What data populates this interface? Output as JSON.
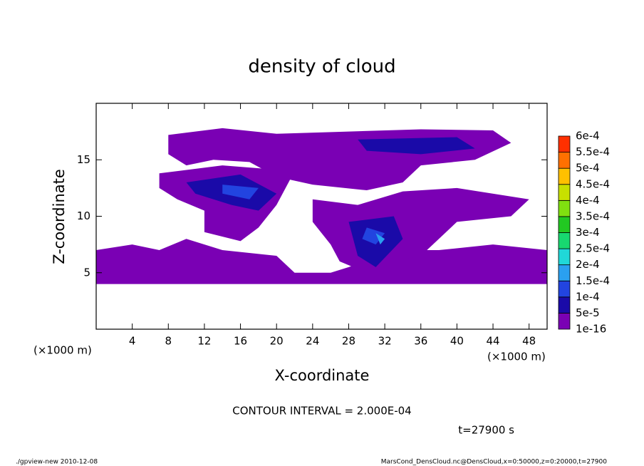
{
  "chart_data": {
    "type": "contour",
    "title": "density of cloud",
    "x_label": "X-coordinate",
    "y_label": "Z-coordinate",
    "x_unit": "(×1000 m)",
    "y_unit": "(×1000 m)",
    "contour_interval": "CONTOUR INTERVAL = 2.000E-04",
    "time": "t=27900 s",
    "footer_left": "./gpview-new   2010-12-08",
    "footer_right": "MarsCond_DensCloud.nc@DensCloud,x=0:50000,z=0:20000,t=27900",
    "xlim": [
      0,
      50
    ],
    "ylim": [
      0,
      20
    ],
    "xticks": [
      4,
      8,
      12,
      16,
      20,
      24,
      28,
      32,
      36,
      40,
      44,
      48
    ],
    "yticks": [
      5,
      10,
      15
    ],
    "colorbar": {
      "levels": [
        {
          "value": 1e-16,
          "label": "1e-16"
        },
        {
          "value": 5e-05,
          "label": "5e-5"
        },
        {
          "value": 0.0001,
          "label": "1e-4"
        },
        {
          "value": 0.00015,
          "label": "1.5e-4"
        },
        {
          "value": 0.0002,
          "label": "2e-4"
        },
        {
          "value": 0.00025,
          "label": "2.5e-4"
        },
        {
          "value": 0.0003,
          "label": "3e-4"
        },
        {
          "value": 0.00035,
          "label": "3.5e-4"
        },
        {
          "value": 0.0004,
          "label": "4e-4"
        },
        {
          "value": 0.00045,
          "label": "4.5e-4"
        },
        {
          "value": 0.0005,
          "label": "5e-4"
        },
        {
          "value": 0.00055,
          "label": "5.5e-4"
        },
        {
          "value": 0.0006,
          "label": "6e-4"
        }
      ],
      "colors": [
        "#7a00b4",
        "#1a0aa8",
        "#2244e0",
        "#2aa0f0",
        "#20d8d8",
        "#18d870",
        "#22c822",
        "#80e010",
        "#c8e000",
        "#ffc000",
        "#ff7000",
        "#ff3000",
        "#ff7f7f"
      ]
    },
    "regions": [
      {
        "min": 1e-16,
        "x": [
          0,
          50,
          50,
          44,
          38,
          33,
          28,
          26,
          22,
          20,
          14,
          10,
          7,
          4,
          0
        ],
        "z": [
          4,
          4,
          7,
          7.5,
          7,
          7,
          5.5,
          5,
          5,
          6.5,
          7,
          8,
          7,
          7.5,
          7
        ]
      },
      {
        "min": 1e-16,
        "x": [
          8,
          14,
          20,
          28,
          36,
          44,
          46,
          42,
          36,
          34,
          30,
          24,
          20,
          17,
          13,
          10,
          8
        ],
        "z": [
          17.2,
          17.8,
          17.3,
          17.5,
          17.7,
          17.6,
          16.5,
          15,
          14.5,
          13,
          12.3,
          12.8,
          13.5,
          14.8,
          15,
          14.5,
          15.5
        ]
      },
      {
        "min": 1e-16,
        "x": [
          7,
          14,
          22,
          20,
          18,
          16,
          12,
          12,
          9,
          7
        ],
        "z": [
          13.8,
          14.5,
          14,
          11,
          9,
          7.8,
          8.6,
          10.5,
          11.5,
          12.5
        ]
      },
      {
        "min": 1e-16,
        "x": [
          24,
          29,
          34,
          40,
          48,
          46,
          40,
          38,
          36,
          33,
          30,
          27,
          26,
          24
        ],
        "z": [
          11.5,
          11,
          12.2,
          12.5,
          11.5,
          10,
          9.5,
          8,
          6.5,
          6,
          5,
          6,
          7.5,
          9.5
        ]
      },
      {
        "min": 5e-05,
        "x": [
          10,
          16,
          20,
          18,
          15,
          11
        ],
        "z": [
          13,
          13.7,
          12,
          10.5,
          11,
          12
        ]
      },
      {
        "min": 5e-05,
        "x": [
          28,
          33,
          34,
          31,
          29
        ],
        "z": [
          9.5,
          10,
          8,
          5.5,
          6.5
        ]
      },
      {
        "min": 5e-05,
        "x": [
          29,
          40,
          42,
          36,
          30
        ],
        "z": [
          16.8,
          17,
          16,
          15.5,
          15.8
        ]
      },
      {
        "min": 0.0001,
        "x": [
          14,
          18,
          17,
          14
        ],
        "z": [
          12.8,
          12.5,
          11.5,
          12
        ]
      },
      {
        "min": 0.0001,
        "x": [
          30,
          32,
          31,
          29.5
        ],
        "z": [
          9,
          8.5,
          7.5,
          8
        ]
      },
      {
        "min": 0.00015,
        "x": [
          31,
          32,
          31.5
        ],
        "z": [
          8.5,
          8,
          7.5
        ]
      }
    ]
  }
}
